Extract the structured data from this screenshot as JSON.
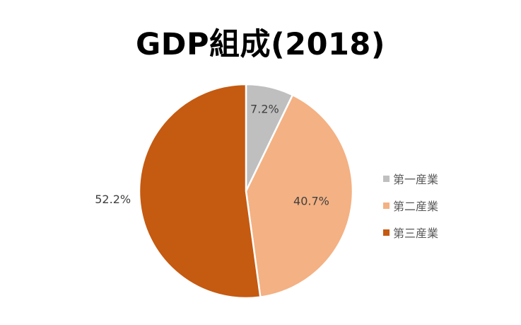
{
  "chart_data": {
    "type": "pie",
    "title": "GDP組成(2018)",
    "slices": [
      {
        "name": "第一産業",
        "value": 7.2,
        "label": "7.2%",
        "color": "#bfbfbf"
      },
      {
        "name": "第二産業",
        "value": 40.7,
        "label": "40.7%",
        "color": "#f4b183"
      },
      {
        "name": "第三産業",
        "value": 52.2,
        "label": "52.2%",
        "color": "#c55a11"
      }
    ],
    "legend_position": "right",
    "label_color": "#404040"
  }
}
